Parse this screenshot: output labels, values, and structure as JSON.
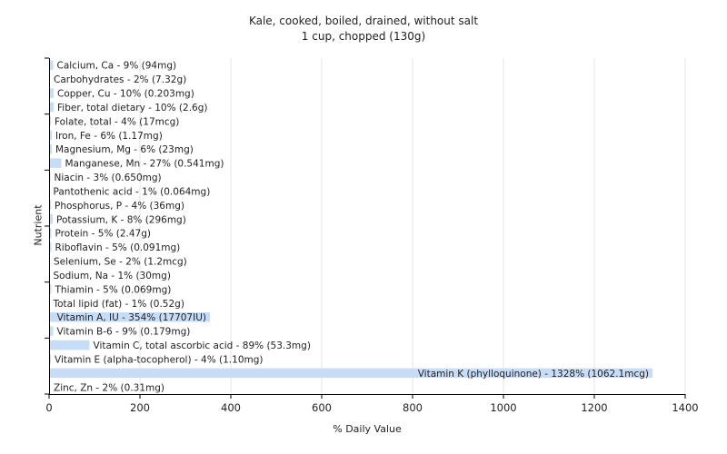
{
  "chart_data": {
    "type": "bar",
    "orientation": "horizontal",
    "title": "Kale, cooked, boiled, drained, without salt",
    "subtitle": "1 cup, chopped (130g)",
    "xlabel": "% Daily Value",
    "ylabel": "Nutrient",
    "xlim": [
      0,
      1400
    ],
    "xticks": [
      0,
      200,
      400,
      600,
      800,
      1000,
      1200,
      1400
    ],
    "grid": true,
    "bar_color": "#c6dcf7",
    "categories": [
      "Calcium, Ca - 9% (94mg)",
      "Carbohydrates - 2% (7.32g)",
      "Copper, Cu - 10% (0.203mg)",
      "Fiber, total dietary - 10% (2.6g)",
      "Folate, total - 4% (17mcg)",
      "Iron, Fe - 6% (1.17mg)",
      "Magnesium, Mg - 6% (23mg)",
      "Manganese, Mn - 27% (0.541mg)",
      "Niacin - 3% (0.650mg)",
      "Pantothenic acid - 1% (0.064mg)",
      "Phosphorus, P - 4% (36mg)",
      "Potassium, K - 8% (296mg)",
      "Protein - 5% (2.47g)",
      "Riboflavin - 5% (0.091mg)",
      "Selenium, Se - 2% (1.2mcg)",
      "Sodium, Na - 1% (30mg)",
      "Thiamin - 5% (0.069mg)",
      "Total lipid (fat) - 1% (0.52g)",
      "Vitamin A, IU - 354% (17707IU)",
      "Vitamin B-6 - 9% (0.179mg)",
      "Vitamin C, total ascorbic acid - 89% (53.3mg)",
      "Vitamin E (alpha-tocopherol) - 4% (1.10mg)",
      "Vitamin K (phylloquinone) - 1328% (1062.1mcg)",
      "Zinc, Zn - 2% (0.31mg)"
    ],
    "values": [
      9,
      2,
      10,
      10,
      4,
      6,
      6,
      27,
      3,
      1,
      4,
      8,
      5,
      5,
      2,
      1,
      5,
      1,
      354,
      9,
      89,
      4,
      1328,
      2
    ]
  }
}
